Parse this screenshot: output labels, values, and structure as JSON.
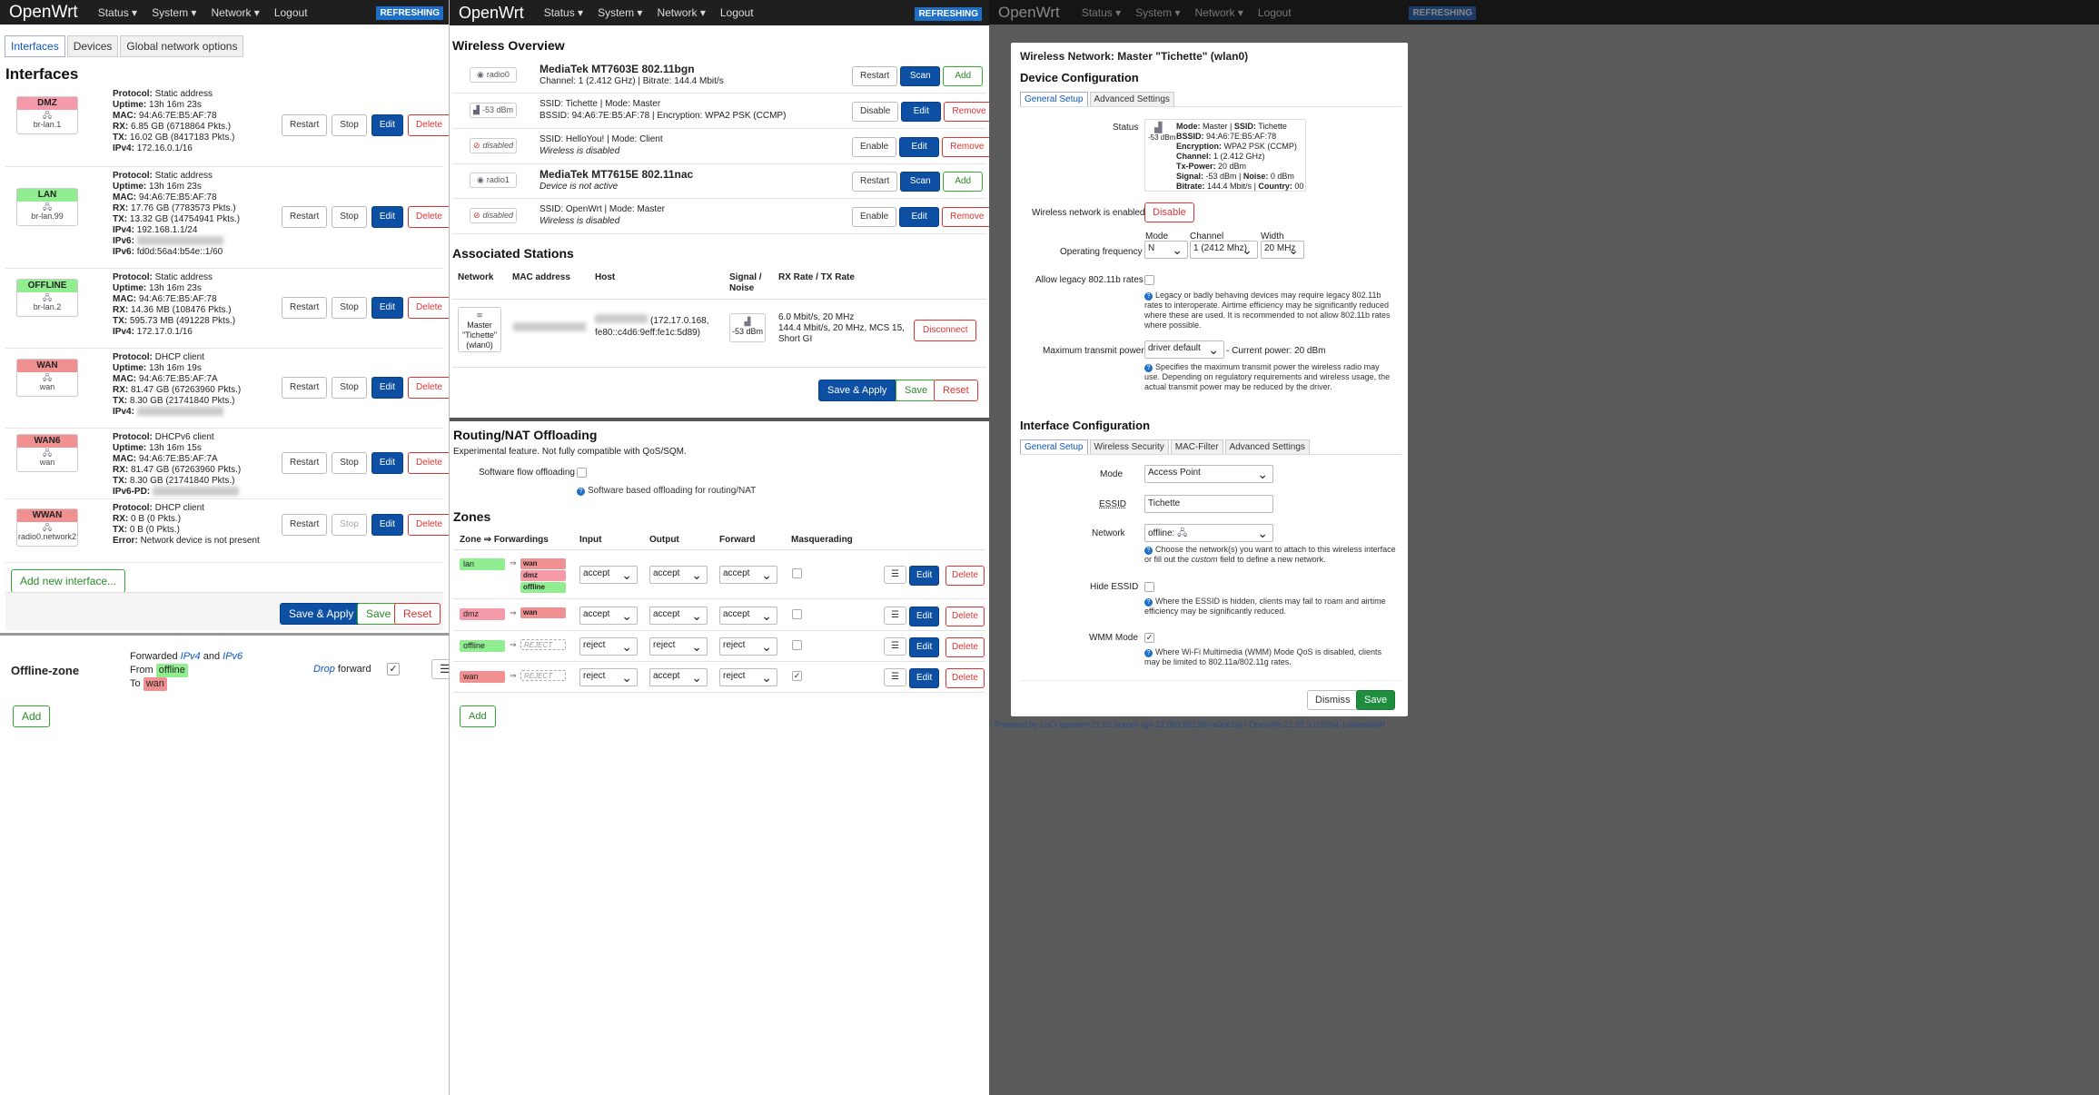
{
  "nav": {
    "brand": "OpenWrt",
    "status": "Status ▾",
    "system": "System ▾",
    "network": "Network ▾",
    "logout": "Logout",
    "refreshing": "REFRESHING"
  },
  "left": {
    "tabs": [
      "Interfaces",
      "Devices",
      "Global network options"
    ],
    "title": "Interfaces",
    "buttons": {
      "restart": "Restart",
      "stop": "Stop",
      "edit": "Edit",
      "delete": "Delete"
    },
    "interfaces": [
      {
        "name": "DMZ",
        "device": "br-lan.1",
        "color": "#f49aa8",
        "lines": [
          [
            "Protocol:",
            "Static address"
          ],
          [
            "Uptime:",
            "13h 16m 23s"
          ],
          [
            "MAC:",
            "94:A6:7E:B5:AF:78"
          ],
          [
            "RX:",
            "6.85 GB (6718864 Pkts.)"
          ],
          [
            "TX:",
            "16.02 GB (8417183 Pkts.)"
          ],
          [
            "IPv4:",
            "172.16.0.1/16"
          ]
        ]
      },
      {
        "name": "LAN",
        "device": "br-lan.99",
        "color": "#90ee90",
        "lines": [
          [
            "Protocol:",
            "Static address"
          ],
          [
            "Uptime:",
            "13h 16m 23s"
          ],
          [
            "MAC:",
            "94:A6:7E:B5:AF:78"
          ],
          [
            "RX:",
            "17.76 GB (7783573 Pkts.)"
          ],
          [
            "TX:",
            "13.32 GB (14754941 Pkts.)"
          ],
          [
            "IPv4:",
            "192.168.1.1/24"
          ],
          [
            "IPv6:",
            ""
          ],
          [
            "IPv6:",
            "fd0d:56a4:b54e::1/60"
          ]
        ]
      },
      {
        "name": "OFFLINE",
        "device": "br-lan.2",
        "color": "#90ee90",
        "lines": [
          [
            "Protocol:",
            "Static address"
          ],
          [
            "Uptime:",
            "13h 16m 23s"
          ],
          [
            "MAC:",
            "94:A6:7E:B5:AF:78"
          ],
          [
            "RX:",
            "14.36 MB (108476 Pkts.)"
          ],
          [
            "TX:",
            "595.73 MB (491228 Pkts.)"
          ],
          [
            "IPv4:",
            "172.17.0.1/16"
          ]
        ]
      },
      {
        "name": "WAN",
        "device": "wan",
        "color": "#f09090",
        "lines": [
          [
            "Protocol:",
            "DHCP client"
          ],
          [
            "Uptime:",
            "13h 16m 19s"
          ],
          [
            "MAC:",
            "94:A6:7E:B5:AF:7A"
          ],
          [
            "RX:",
            "81.47 GB (67263960 Pkts.)"
          ],
          [
            "TX:",
            "8.30 GB (21741840 Pkts.)"
          ],
          [
            "IPv4:",
            ""
          ]
        ]
      },
      {
        "name": "WAN6",
        "device": "wan",
        "color": "#f09090",
        "lines": [
          [
            "Protocol:",
            "DHCPv6 client"
          ],
          [
            "Uptime:",
            "13h 16m 15s"
          ],
          [
            "MAC:",
            "94:A6:7E:B5:AF:7A"
          ],
          [
            "RX:",
            "81.47 GB (67263960 Pkts.)"
          ],
          [
            "TX:",
            "8.30 GB (21741840 Pkts.)"
          ],
          [
            "IPv6-PD:",
            ""
          ]
        ]
      },
      {
        "name": "WWAN",
        "device": "radio0.network2",
        "color": "#f09090",
        "lines": [
          [
            "Protocol:",
            "DHCP client"
          ],
          [
            "RX:",
            "0 B (0 Pkts.)"
          ],
          [
            "TX:",
            "0 B (0 Pkts.)"
          ],
          [
            "Error:",
            "Network device is not present"
          ]
        ]
      }
    ],
    "add_interface": "Add new interface...",
    "save_apply": "Save & Apply",
    "save": "Save",
    "reset": "Reset",
    "fw_zone": {
      "name": "Offline-zone",
      "forwarded": "Forwarded",
      "ipv4": "IPv4",
      "and": "and",
      "ipv6": "IPv6",
      "from": "From",
      "from_zone": "offline",
      "to": "To",
      "to_zone": "wan",
      "drop": "Drop",
      "forward": "forward"
    },
    "add": "Add"
  },
  "middle": {
    "wireless_title": "Wireless Overview",
    "radios": [
      {
        "icon": "radio0",
        "title": "MediaTek MT7603E 802.11bgn",
        "detail": "Channel: 1 (2.412 GHz) | Bitrate: 144.4 Mbit/s",
        "b1": "Restart",
        "b2": "Scan",
        "b3": "Add"
      },
      {
        "icon": "-53 dBm",
        "line1": "SSID: Tichette | Mode: Master",
        "line2": "BSSID: 94:A6:7E:B5:AF:78 | Encryption: WPA2 PSK (CCMP)",
        "b1": "Disable",
        "b2": "Edit",
        "b3": "Remove"
      },
      {
        "icon": "disabled",
        "line1": "SSID: HelloYou! | Mode: Client",
        "line2": "Wireless is disabled",
        "b1": "Enable",
        "b2": "Edit",
        "b3": "Remove"
      },
      {
        "icon": "radio1",
        "title": "MediaTek MT7615E 802.11nac",
        "detail": "Device is not active",
        "b1": "Restart",
        "b2": "Scan",
        "b3": "Add"
      },
      {
        "icon": "disabled",
        "line1": "SSID: OpenWrt | Mode: Master",
        "line2": "Wireless is disabled",
        "b1": "Enable",
        "b2": "Edit",
        "b3": "Remove"
      }
    ],
    "assoc_title": "Associated Stations",
    "assoc_headers": [
      "Network",
      "MAC address",
      "Host",
      "Signal / Noise",
      "RX Rate / TX Rate"
    ],
    "station": {
      "network": "Master \"Tichette\" (wlan0)",
      "host": "(172.17.0.168, fe80::c4d6:9eff:fe1c:5d89)",
      "signal": "-53 dBm",
      "rates": [
        "6.0 Mbit/s, 20 MHz",
        "144.4 Mbit/s, 20 MHz, MCS 15,",
        "Short GI"
      ],
      "disconnect": "Disconnect"
    },
    "save_apply": "Save & Apply",
    "save": "Save",
    "reset": "Reset",
    "nat_title": "Routing/NAT Offloading",
    "nat_desc": "Experimental feature. Not fully compatible with QoS/SQM.",
    "nat_label": "Software flow offloading",
    "nat_help": "Software based offloading for routing/NAT",
    "zones_title": "Zones",
    "zones_headers": [
      "Zone ⇒ Forwardings",
      "Input",
      "Output",
      "Forward",
      "Masquerading"
    ],
    "zones": [
      {
        "name": "lan",
        "color": "#90ee90",
        "fwd": [
          "wan",
          "dmz",
          "offline"
        ],
        "fwdcolors": [
          "#f09090",
          "#f49aa8",
          "#90ee90"
        ],
        "input": "accept",
        "output": "accept",
        "forward": "accept",
        "masq": false
      },
      {
        "name": "dmz",
        "color": "#f49aa8",
        "fwd": [
          "wan"
        ],
        "fwdcolors": [
          "#f09090"
        ],
        "input": "accept",
        "output": "accept",
        "forward": "accept",
        "masq": false
      },
      {
        "name": "offline",
        "color": "#90ee90",
        "fwd": [
          "REJECT"
        ],
        "fwdcolors": [
          ""
        ],
        "input": "reject",
        "output": "reject",
        "forward": "reject",
        "masq": false
      },
      {
        "name": "wan",
        "color": "#f09090",
        "fwd": [
          "REJECT"
        ],
        "fwdcolors": [
          ""
        ],
        "input": "reject",
        "output": "accept",
        "forward": "reject",
        "masq": true
      }
    ],
    "edit": "Edit",
    "delete": "Delete",
    "add": "Add"
  },
  "right": {
    "modal_title": "Wireless Network: Master \"Tichette\" (wlan0)",
    "device_config": "Device Configuration",
    "dev_tabs": [
      "General Setup",
      "Advanced Settings"
    ],
    "status_label": "Status",
    "status_signal": "-53 dBm",
    "status_lines": [
      [
        "Mode:",
        "Master",
        "SSID:",
        "Tichette"
      ],
      [
        "BSSID:",
        "94:A6:7E:B5:AF:78",
        "",
        ""
      ],
      [
        "Encryption:",
        "WPA2 PSK (CCMP)",
        "",
        ""
      ],
      [
        "Channel:",
        "1 (2.412 GHz)",
        "",
        ""
      ],
      [
        "Tx-Power:",
        "20 dBm",
        "",
        ""
      ],
      [
        "Signal:",
        "-53 dBm",
        "Noise:",
        "0 dBm"
      ],
      [
        "Bitrate:",
        "144.4 Mbit/s",
        "Country:",
        "00"
      ]
    ],
    "enabled_label": "Wireless network is enabled",
    "disable": "Disable",
    "freq_label": "Operating frequency",
    "mode_label": "Mode",
    "mode_value": "N",
    "channel_label": "Channel",
    "channel_value": "1 (2412 Mhz)",
    "width_label": "Width",
    "width_value": "20 MHz",
    "legacy_label": "Allow legacy 802.11b rates",
    "legacy_help": "Legacy or badly behaving devices may require legacy 802.11b rates to interoperate. Airtime efficiency may be significantly reduced where these are used. It is recommended to not allow 802.11b rates where possible.",
    "power_label": "Maximum transmit power",
    "power_value": "driver default",
    "power_current": "- Current power: 20 dBm",
    "power_help": "Specifies the maximum transmit power the wireless radio may use. Depending on regulatory requirements and wireless usage, the actual transmit power may be reduced by the driver.",
    "iface_config": "Interface Configuration",
    "if_tabs": [
      "General Setup",
      "Wireless Security",
      "MAC-Filter",
      "Advanced Settings"
    ],
    "if_mode_label": "Mode",
    "if_mode_value": "Access Point",
    "essid_label": "ESSID",
    "essid_value": "Tichette",
    "network_label": "Network",
    "network_value": "offline:",
    "network_help_1": "Choose the network(s) you want to attach to this wireless interface or fill out the",
    "network_help_custom": "custom",
    "network_help_2": "field to define a new network.",
    "hide_label": "Hide ESSID",
    "hide_help": "Where the ESSID is hidden, clients may fail to roam and airtime efficiency may be significantly reduced.",
    "wmm_label": "WMM Mode",
    "wmm_help": "Where Wi-Fi Multimedia (WMM) Mode QoS is disabled, clients may be limited to 802.11a/802.11g rates.",
    "dismiss": "Dismiss",
    "save": "Save",
    "footer": "Powered by LuCI openwrt-21.02 branch (git-22.083.69138-0a0ce2a) / OpenWrt 21.02.3 r16554-1d4dea6d4f"
  }
}
